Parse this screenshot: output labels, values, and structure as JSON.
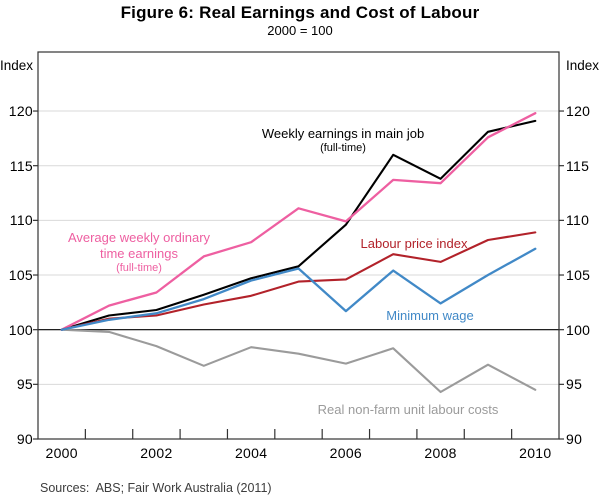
{
  "sources_note": "Sources:  ABS; Fair Work Australia (2011)",
  "chart_data": {
    "type": "line",
    "title": "Figure 6: Real Earnings and Cost of Labour",
    "subtitle": "2000 = 100",
    "y_unit": "Index",
    "x": [
      2000,
      2001,
      2002,
      2003,
      2004,
      2005,
      2006,
      2007,
      2008,
      2009,
      2010
    ],
    "x_tick_labels": [
      2000,
      2002,
      2004,
      2006,
      2008,
      2010
    ],
    "y_ticks": [
      90,
      95,
      100,
      105,
      110,
      115,
      120
    ],
    "ylim": [
      90,
      125.4
    ],
    "baseline": 100,
    "grid_color": "#d9d9d9",
    "baseline_color": "#000000",
    "frame_color": "#333333",
    "series": [
      {
        "name": "Average weekly ordinary time earnings (full-time)",
        "label_lines": [
          "Average weekly ordinary",
          "time earnings"
        ],
        "sublabel": "(full-time)",
        "color": "#ee5fa1",
        "values": [
          100,
          102.2,
          103.4,
          106.7,
          108.0,
          111.1,
          109.9,
          113.7,
          113.4,
          117.6,
          119.8
        ]
      },
      {
        "name": "Weekly earnings in main job (full-time)",
        "label_lines": [
          "Weekly earnings in main job"
        ],
        "sublabel": "(full-time)",
        "color": "#000000",
        "values": [
          100,
          101.3,
          101.8,
          103.2,
          104.7,
          105.8,
          109.6,
          116.0,
          113.8,
          118.1,
          119.1
        ]
      },
      {
        "name": "Labour price index",
        "label_lines": [
          "Labour price index"
        ],
        "sublabel": "",
        "color": "#b2222a",
        "values": [
          100,
          101.0,
          101.3,
          102.3,
          103.1,
          104.4,
          104.6,
          106.9,
          106.2,
          108.2,
          108.9
        ]
      },
      {
        "name": "Minimum wage",
        "label_lines": [
          "Minimum wage"
        ],
        "sublabel": "",
        "color": "#4189c7",
        "values": [
          100,
          100.9,
          101.5,
          102.8,
          104.5,
          105.6,
          101.7,
          105.4,
          102.4,
          105.0,
          107.4
        ]
      },
      {
        "name": "Real non-farm unit labour costs",
        "label_lines": [
          "Real non-farm unit labour costs"
        ],
        "sublabel": "",
        "color": "#9b9b9b",
        "values": [
          100,
          99.8,
          98.5,
          96.7,
          98.4,
          97.8,
          96.9,
          98.3,
          94.3,
          96.8,
          94.5
        ]
      }
    ]
  }
}
